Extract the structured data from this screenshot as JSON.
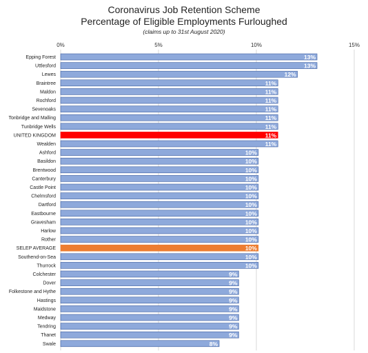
{
  "title": "Coronavirus Job Retention Scheme",
  "subtitle": "Percentage of Eligible Employments Furloughed",
  "note": "(claims up to 31st August 2020)",
  "colors": {
    "bar": "#8ea9db",
    "bar_stroke": "#3d5e9e",
    "uk": "#ff0000",
    "selep": "#ed7d31",
    "grid": "#d9d9d9"
  },
  "chart_data": {
    "type": "bar",
    "orientation": "horizontal",
    "title": "Coronavirus Job Retention Scheme",
    "subtitle": "Percentage of Eligible Employments Furloughed",
    "xlim": [
      0,
      15
    ],
    "ticks": [
      0,
      5,
      10,
      15
    ],
    "tick_labels": [
      "0%",
      "5%",
      "10%",
      "15%"
    ],
    "grid": true,
    "categories": [
      "Epping Forest",
      "Uttlesford",
      "Lewes",
      "Braintree",
      "Maldon",
      "Rochford",
      "Sevenoaks",
      "Tonbridge and Malling",
      "Tunbridge Wells",
      "UNITED KINGDOM",
      "Wealden",
      "Ashford",
      "Basildon",
      "Brentwood",
      "Canterbury",
      "Castle Point",
      "Chelmsford",
      "Dartford",
      "Eastbourne",
      "Gravesham",
      "Harlow",
      "Rother",
      "SELEP AVERAGE",
      "Southend-on-Sea",
      "Thurrock",
      "Colchester",
      "Dover",
      "Folkestone and Hythe",
      "Hastings",
      "Maidstone",
      "Medway",
      "Tendring",
      "Thanet",
      "Swale"
    ],
    "values": [
      13,
      13,
      12,
      11,
      11,
      11,
      11,
      11,
      11,
      11,
      11,
      10,
      10,
      10,
      10,
      10,
      10,
      10,
      10,
      10,
      10,
      10,
      10,
      10,
      10,
      9,
      9,
      9,
      9,
      9,
      9,
      9,
      9,
      8
    ],
    "bar_lengths": [
      13.1,
      13.1,
      12.1,
      11.1,
      11.1,
      11.1,
      11.1,
      11.1,
      11.1,
      11.1,
      11.1,
      10.1,
      10.1,
      10.1,
      10.1,
      10.1,
      10.1,
      10.1,
      10.1,
      10.1,
      10.1,
      10.1,
      10.1,
      10.1,
      10.1,
      9.1,
      9.1,
      9.1,
      9.1,
      9.1,
      9.1,
      9.1,
      9.1,
      8.1
    ],
    "labels": [
      "13%",
      "13%",
      "12%",
      "11%",
      "11%",
      "11%",
      "11%",
      "11%",
      "11%",
      "11%",
      "11%",
      "10%",
      "10%",
      "10%",
      "10%",
      "10%",
      "10%",
      "10%",
      "10%",
      "10%",
      "10%",
      "10%",
      "10%",
      "10%",
      "10%",
      "9%",
      "9%",
      "9%",
      "9%",
      "9%",
      "9%",
      "9%",
      "9%",
      "8%"
    ],
    "highlight": {
      "UNITED KINGDOM": "#ff0000",
      "SELEP AVERAGE": "#ed7d31"
    }
  }
}
